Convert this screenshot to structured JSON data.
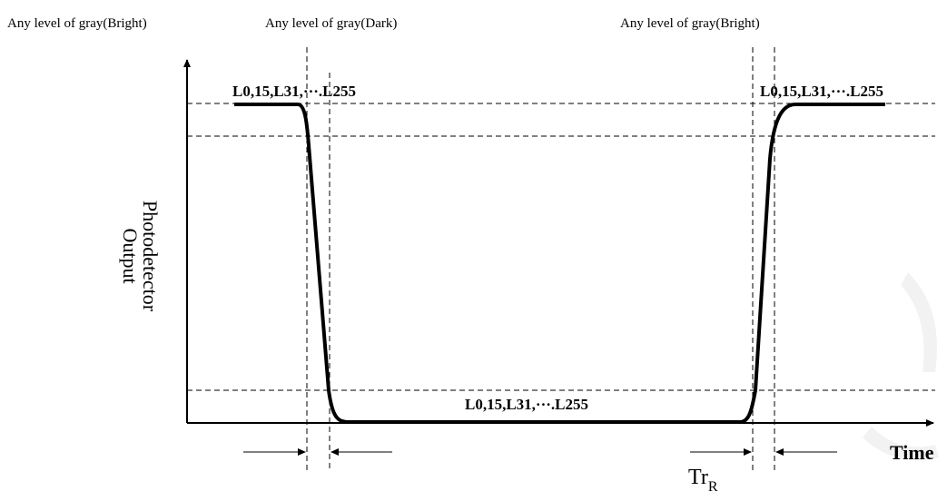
{
  "headers": {
    "left": "Any level of gray(Bright)",
    "middle": "Any level of gray(Dark)",
    "right": "Any level of gray(Bright)"
  },
  "levels": {
    "top_left": "L0,15,L31,···.L255",
    "top_right": "L0,15,L31,···.L255",
    "bottom": "L0,15,L31,···.L255"
  },
  "y_axis": {
    "line1": "Photodetector",
    "line2": "Output"
  },
  "x_axis": {
    "label": "Time"
  },
  "rise_time": {
    "main": "Tr",
    "sub": "R"
  }
}
